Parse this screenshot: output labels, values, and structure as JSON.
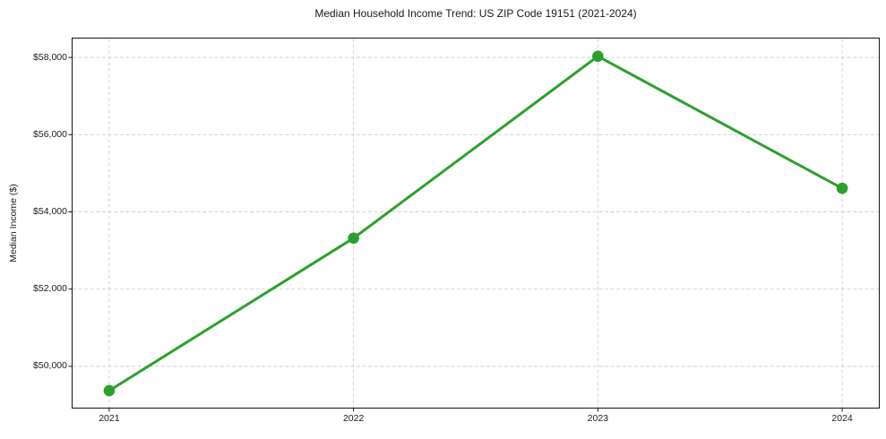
{
  "chart_data": {
    "type": "line",
    "title": "Median Household Income Trend: US ZIP Code 19151 (2021-2024)",
    "xlabel": "",
    "ylabel": "Median Income ($)",
    "x": [
      2021,
      2022,
      2023,
      2024
    ],
    "x_tick_labels": [
      "2021",
      "2022",
      "2023",
      "2024"
    ],
    "series": [
      {
        "name": "Median Income",
        "values": [
          49370,
          53320,
          58030,
          54610
        ]
      }
    ],
    "y_ticks": [
      50000,
      52000,
      54000,
      56000,
      58000
    ],
    "y_tick_labels": [
      "$50,000",
      "$52,000",
      "$54,000",
      "$56,000",
      "$58,000"
    ],
    "xlim": [
      2020.85,
      2024.15
    ],
    "ylim": [
      48930,
      58490
    ],
    "grid": true,
    "legend_position": "none",
    "line_color": "#2ca02c",
    "marker_color": "#2ca02c",
    "grid_color": "#cfcfcf",
    "text_color": "#1a1a1a",
    "background_color": "#ffffff"
  }
}
